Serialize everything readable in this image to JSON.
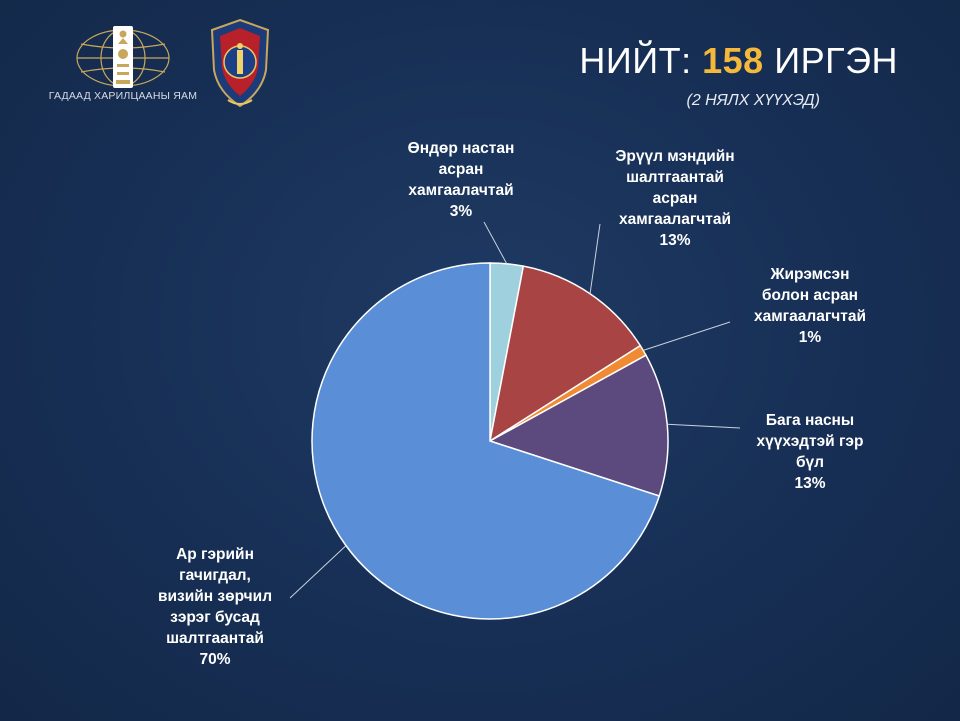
{
  "header": {
    "org_name": "ГАДААД ХАРИЛЦААНЫ ЯАМ",
    "title_prefix": "НИЙТ:",
    "title_number": "158",
    "title_suffix": "ИРГЭН",
    "subtitle": "(2 НЯЛХ ХҮҮХЭД)"
  },
  "colors": {
    "background": "#172f55",
    "accent_number": "#f4b93a",
    "leader_line": "#c9d1de"
  },
  "icons": {
    "left_logo": "soyombo-globe-emblem-icon",
    "right_logo": "police-shield-emblem-icon"
  },
  "chart_data": {
    "type": "pie",
    "title": "",
    "slices": [
      {
        "label_lines": [
          "Өндөр настан",
          "асран",
          "хамгаалачтай"
        ],
        "value": 3,
        "value_label": "3%",
        "color": "#9fd0dd"
      },
      {
        "label_lines": [
          "Эрүүл мэндийн",
          "шалтгаантай",
          "асран",
          "хамгаалагчтай"
        ],
        "value": 13,
        "value_label": "13%",
        "color": "#a84443"
      },
      {
        "label_lines": [
          "Жирэмсэн",
          "болон асран",
          "хамгаалагчтай"
        ],
        "value": 1,
        "value_label": "1%",
        "color": "#f08a33"
      },
      {
        "label_lines": [
          "Бага насны",
          "хүүхэдтэй гэр",
          "бүл"
        ],
        "value": 13,
        "value_label": "13%",
        "color": "#5c4a7e"
      },
      {
        "label_lines": [
          "Ар гэрийн",
          "гачигдал,",
          "визийн зөрчил",
          "зэрэг бусад",
          "шалтгаантай"
        ],
        "value": 70,
        "value_label": "70%",
        "color": "#5a8fd8"
      }
    ]
  }
}
